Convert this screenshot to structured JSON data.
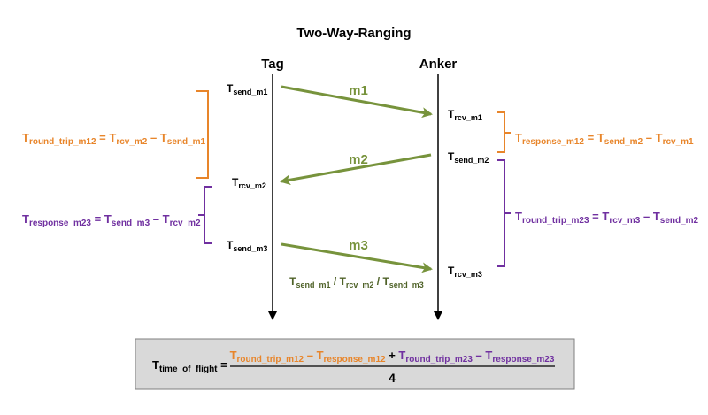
{
  "title": "Two-Way-Ranging",
  "lanes": {
    "tag": "Tag",
    "anker": "Anker"
  },
  "colors": {
    "orange": "#e8852a",
    "purple": "#7030a0",
    "green": "#77933c",
    "dark_green": "#4f6228",
    "box_fill": "#d9d9d9",
    "box_border": "#7f7f7f"
  },
  "messages": {
    "m1": "m1",
    "m2": "m2",
    "m3": "m3"
  },
  "timestamps": {
    "t_send_m1": {
      "base": "T",
      "sub": "send_m1"
    },
    "t_rcv_m1": {
      "base": "T",
      "sub": "rcv_m1"
    },
    "t_send_m2": {
      "base": "T",
      "sub": "send_m2"
    },
    "t_rcv_m2": {
      "base": "T",
      "sub": "rcv_m2"
    },
    "t_send_m3": {
      "base": "T",
      "sub": "send_m3"
    },
    "t_rcv_m3": {
      "base": "T",
      "sub": "rcv_m3"
    }
  },
  "payload": {
    "a": {
      "base": "T",
      "sub": "send_m1"
    },
    "sep1": " / ",
    "b": {
      "base": "T",
      "sub": "rcv_m2"
    },
    "sep2": " / ",
    "c": {
      "base": "T",
      "sub": "send_m3"
    }
  },
  "equations": {
    "round_trip_m12": {
      "lhs": {
        "base": "T",
        "sub": "round_trip_m12"
      },
      "eq": " = ",
      "a": {
        "base": "T",
        "sub": "rcv_m2"
      },
      "op": " – ",
      "b": {
        "base": "T",
        "sub": "send_m1"
      }
    },
    "response_m23": {
      "lhs": {
        "base": "T",
        "sub": "response_m23"
      },
      "eq": " = ",
      "a": {
        "base": "T",
        "sub": "send_m3"
      },
      "op": " – ",
      "b": {
        "base": "T",
        "sub": "rcv_m2"
      }
    },
    "response_m12": {
      "lhs": {
        "base": "T",
        "sub": "response_m12"
      },
      "eq": " = ",
      "a": {
        "base": "T",
        "sub": "send_m2"
      },
      "op": " – ",
      "b": {
        "base": "T",
        "sub": "rcv_m1"
      }
    },
    "round_trip_m23": {
      "lhs": {
        "base": "T",
        "sub": "round_trip_m23"
      },
      "eq": " = ",
      "a": {
        "base": "T",
        "sub": "rcv_m3"
      },
      "op": " – ",
      "b": {
        "base": "T",
        "sub": "send_m2"
      }
    }
  },
  "tof_formula": {
    "lhs": {
      "base": "T",
      "sub": "time_of_flight"
    },
    "eq": " =",
    "num_a": {
      "base": "T",
      "sub": "round_trip_m12"
    },
    "op1": " – ",
    "num_b": {
      "base": "T",
      "sub": "response_m12"
    },
    "op2": " + ",
    "num_c": {
      "base": "T",
      "sub": "round_trip_m23"
    },
    "op3": " – ",
    "num_d": {
      "base": "T",
      "sub": "response_m23"
    },
    "denominator": "4"
  }
}
